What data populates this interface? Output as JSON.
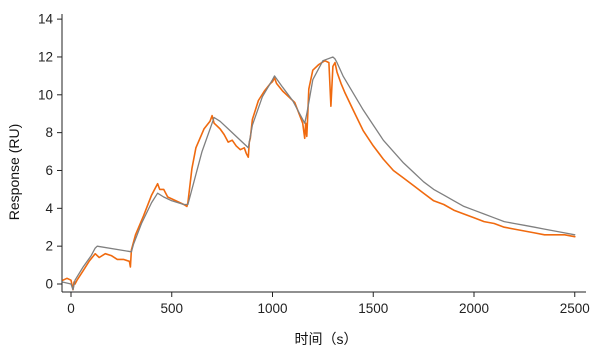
{
  "chart_data": {
    "type": "line",
    "title": "",
    "xlabel": "时间（s）",
    "ylabel": "Response (RU)",
    "xlim": [
      -40,
      2520
    ],
    "ylim": [
      -0.4,
      14.2
    ],
    "x_ticks": [
      0,
      500,
      1000,
      1500,
      2000,
      2500
    ],
    "y_ticks": [
      0,
      2,
      4,
      6,
      8,
      10,
      12,
      14
    ],
    "grid": false,
    "legend": "none",
    "colors": {
      "measured": "#f06a0f",
      "fit": "#808080",
      "axis": "#222222"
    },
    "series": [
      {
        "role": "measured",
        "x": [
          -40,
          -20,
          0,
          10,
          15,
          20,
          30,
          60,
          90,
          120,
          140,
          170,
          200,
          230,
          260,
          290,
          295,
          300,
          320,
          360,
          400,
          420,
          430,
          440,
          460,
          480,
          500,
          540,
          560,
          575,
          580,
          590,
          600,
          620,
          660,
          690,
          700,
          710,
          720,
          740,
          760,
          780,
          800,
          820,
          840,
          860,
          870,
          880,
          885,
          890,
          900,
          930,
          960,
          990,
          1000,
          1010,
          1020,
          1050,
          1080,
          1110,
          1150,
          1160,
          1165,
          1170,
          1175,
          1180,
          1200,
          1230,
          1260,
          1280,
          1290,
          1300,
          1310,
          1320,
          1340,
          1360,
          1400,
          1450,
          1500,
          1550,
          1600,
          1650,
          1700,
          1750,
          1800,
          1850,
          1900,
          1950,
          2000,
          2050,
          2100,
          2150,
          2200,
          2250,
          2300,
          2350,
          2400,
          2450,
          2500
        ],
        "y": [
          0.2,
          0.3,
          0.2,
          -0.3,
          0.1,
          0.0,
          0.2,
          0.7,
          1.2,
          1.6,
          1.4,
          1.6,
          1.5,
          1.3,
          1.3,
          1.2,
          0.9,
          1.8,
          2.6,
          3.6,
          4.7,
          5.1,
          5.3,
          5.0,
          5.0,
          4.6,
          4.5,
          4.3,
          4.2,
          4.1,
          4.3,
          5.2,
          6.1,
          7.2,
          8.2,
          8.6,
          8.9,
          8.5,
          8.4,
          8.2,
          7.9,
          7.5,
          7.6,
          7.3,
          7.1,
          7.2,
          6.9,
          6.7,
          7.5,
          7.7,
          8.7,
          9.7,
          10.2,
          10.6,
          10.7,
          10.9,
          10.6,
          10.2,
          9.9,
          9.6,
          8.5,
          7.7,
          8.5,
          7.8,
          9.0,
          10.3,
          11.3,
          11.6,
          11.8,
          11.7,
          9.4,
          11.5,
          11.7,
          11.2,
          10.6,
          10.1,
          9.2,
          8.1,
          7.3,
          6.6,
          6.0,
          5.6,
          5.2,
          4.8,
          4.4,
          4.2,
          3.9,
          3.7,
          3.5,
          3.3,
          3.2,
          3.0,
          2.9,
          2.8,
          2.7,
          2.6,
          2.6,
          2.6,
          2.5
        ]
      },
      {
        "role": "fit",
        "x": [
          -40,
          0,
          10,
          20,
          60,
          100,
          120,
          130,
          300,
          310,
          350,
          400,
          430,
          460,
          500,
          560,
          580,
          600,
          650,
          700,
          710,
          740,
          800,
          850,
          870,
          880,
          900,
          950,
          1000,
          1010,
          1050,
          1100,
          1160,
          1170,
          1200,
          1250,
          1300,
          1310,
          1320,
          1350,
          1400,
          1450,
          1500,
          1550,
          1600,
          1650,
          1700,
          1750,
          1800,
          1850,
          1900,
          1950,
          2000,
          2050,
          2100,
          2150,
          2200,
          2250,
          2300,
          2350,
          2400,
          2450,
          2500
        ],
        "y": [
          0.1,
          0.0,
          -0.3,
          0.2,
          0.9,
          1.5,
          1.9,
          2.0,
          1.7,
          2.1,
          3.2,
          4.3,
          4.8,
          4.6,
          4.4,
          4.2,
          4.2,
          5.0,
          7.0,
          8.5,
          8.8,
          8.6,
          8.0,
          7.5,
          7.3,
          7.2,
          8.4,
          9.9,
          10.8,
          11.0,
          10.4,
          9.7,
          8.5,
          9.0,
          10.8,
          11.8,
          12.0,
          11.9,
          11.7,
          11.0,
          10.1,
          9.2,
          8.4,
          7.6,
          7.0,
          6.4,
          5.9,
          5.4,
          5.0,
          4.7,
          4.4,
          4.1,
          3.9,
          3.7,
          3.5,
          3.3,
          3.2,
          3.1,
          3.0,
          2.9,
          2.8,
          2.7,
          2.6
        ]
      }
    ]
  }
}
